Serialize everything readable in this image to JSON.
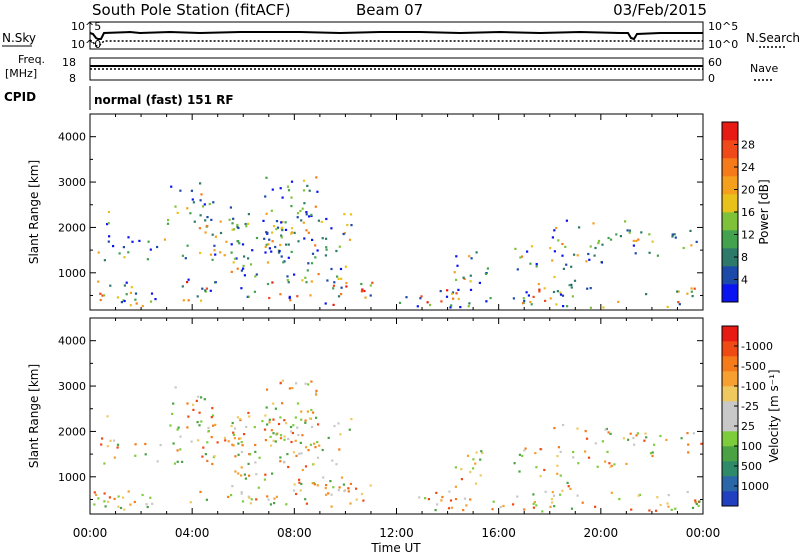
{
  "header": {
    "station": "South Pole Station (fitACF)",
    "beam": "Beam 07",
    "date": "03/Feb/2015"
  },
  "noise_panel": {
    "left_label": "N.Sky",
    "left_ticks": [
      "10^5",
      "10^0"
    ],
    "right_label": "N.Search",
    "right_ticks": [
      "10^5",
      "10^0"
    ]
  },
  "freq_panel": {
    "left_label_1": "Freq.",
    "left_label_2": "[MHz]",
    "left_ticks": [
      "18",
      "8"
    ],
    "right_label": "Nave",
    "right_ticks": [
      "60",
      "0"
    ]
  },
  "cpid": {
    "label": "CPID",
    "mode_text": "normal (fast) 151 RF"
  },
  "chart_data": [
    {
      "type": "heatmap",
      "name": "power",
      "ylabel": "Slant Range [km]",
      "xlabel": "Time UT",
      "ylim": [
        180,
        4500
      ],
      "xlim": [
        0,
        24
      ],
      "y_ticks": [
        1000,
        2000,
        3000,
        4000
      ],
      "x_ticks": [
        "00:00",
        "04:00",
        "08:00",
        "12:00",
        "16:00",
        "20:00",
        "00:00"
      ],
      "colorbar": {
        "label": "Power [dB]",
        "tick_labels": [
          "4",
          "8",
          "12",
          "16",
          "20",
          "24",
          "28"
        ],
        "colors": [
          "#0a14f0",
          "#1c4aa8",
          "#2d7a6a",
          "#43a24e",
          "#7fc23a",
          "#e8c21a",
          "#f5a01c",
          "#f57a1a",
          "#f04a1a",
          "#e81a14"
        ]
      }
    },
    {
      "type": "heatmap",
      "name": "velocity",
      "ylabel": "Slant Range [km]",
      "xlabel": "Time UT",
      "ylim": [
        180,
        4500
      ],
      "xlim": [
        0,
        24
      ],
      "y_ticks": [
        1000,
        2000,
        3000,
        4000
      ],
      "x_ticks": [
        "00:00",
        "04:00",
        "08:00",
        "12:00",
        "16:00",
        "20:00",
        "00:00"
      ],
      "colorbar": {
        "label": "Velocity [m s⁻¹]",
        "tick_labels": [
          "1000",
          "500",
          "100",
          "25",
          "-25",
          "-100",
          "-500",
          "-1000"
        ],
        "colors": [
          "#2040c0",
          "#2a66a8",
          "#2f8a6a",
          "#4aa244",
          "#7ccc3c",
          "#c8c8c8",
          "#c8c8c8",
          "#f0c860",
          "#f5a030",
          "#f57a1a",
          "#f04a14",
          "#e81a14"
        ]
      }
    }
  ]
}
